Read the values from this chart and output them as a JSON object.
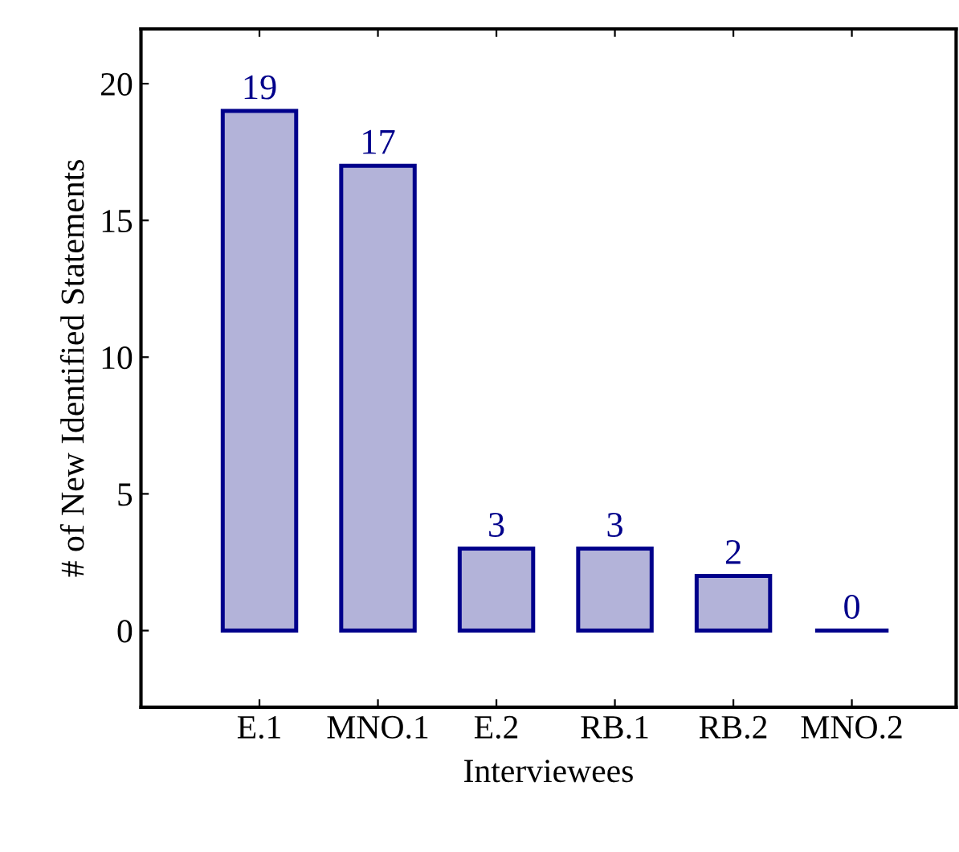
{
  "chart_data": {
    "type": "bar",
    "xlabel": "Interviewees",
    "ylabel": "# of New Identified Statements",
    "categories": [
      "E.1",
      "MNO.1",
      "E.2",
      "RB.1",
      "RB.2",
      "MNO.2"
    ],
    "values": [
      19,
      17,
      3,
      3,
      2,
      0
    ],
    "colors": [
      "#b3b3d9",
      "#b3b3d9",
      "#b3b3d9",
      "#b3b3d9",
      "#b3b3d9",
      "#00008b"
    ],
    "ylim": [
      -2.8,
      22
    ],
    "yticks": [
      0,
      5,
      10,
      15,
      20
    ],
    "data_labels": true,
    "grid": false,
    "legend": false
  }
}
